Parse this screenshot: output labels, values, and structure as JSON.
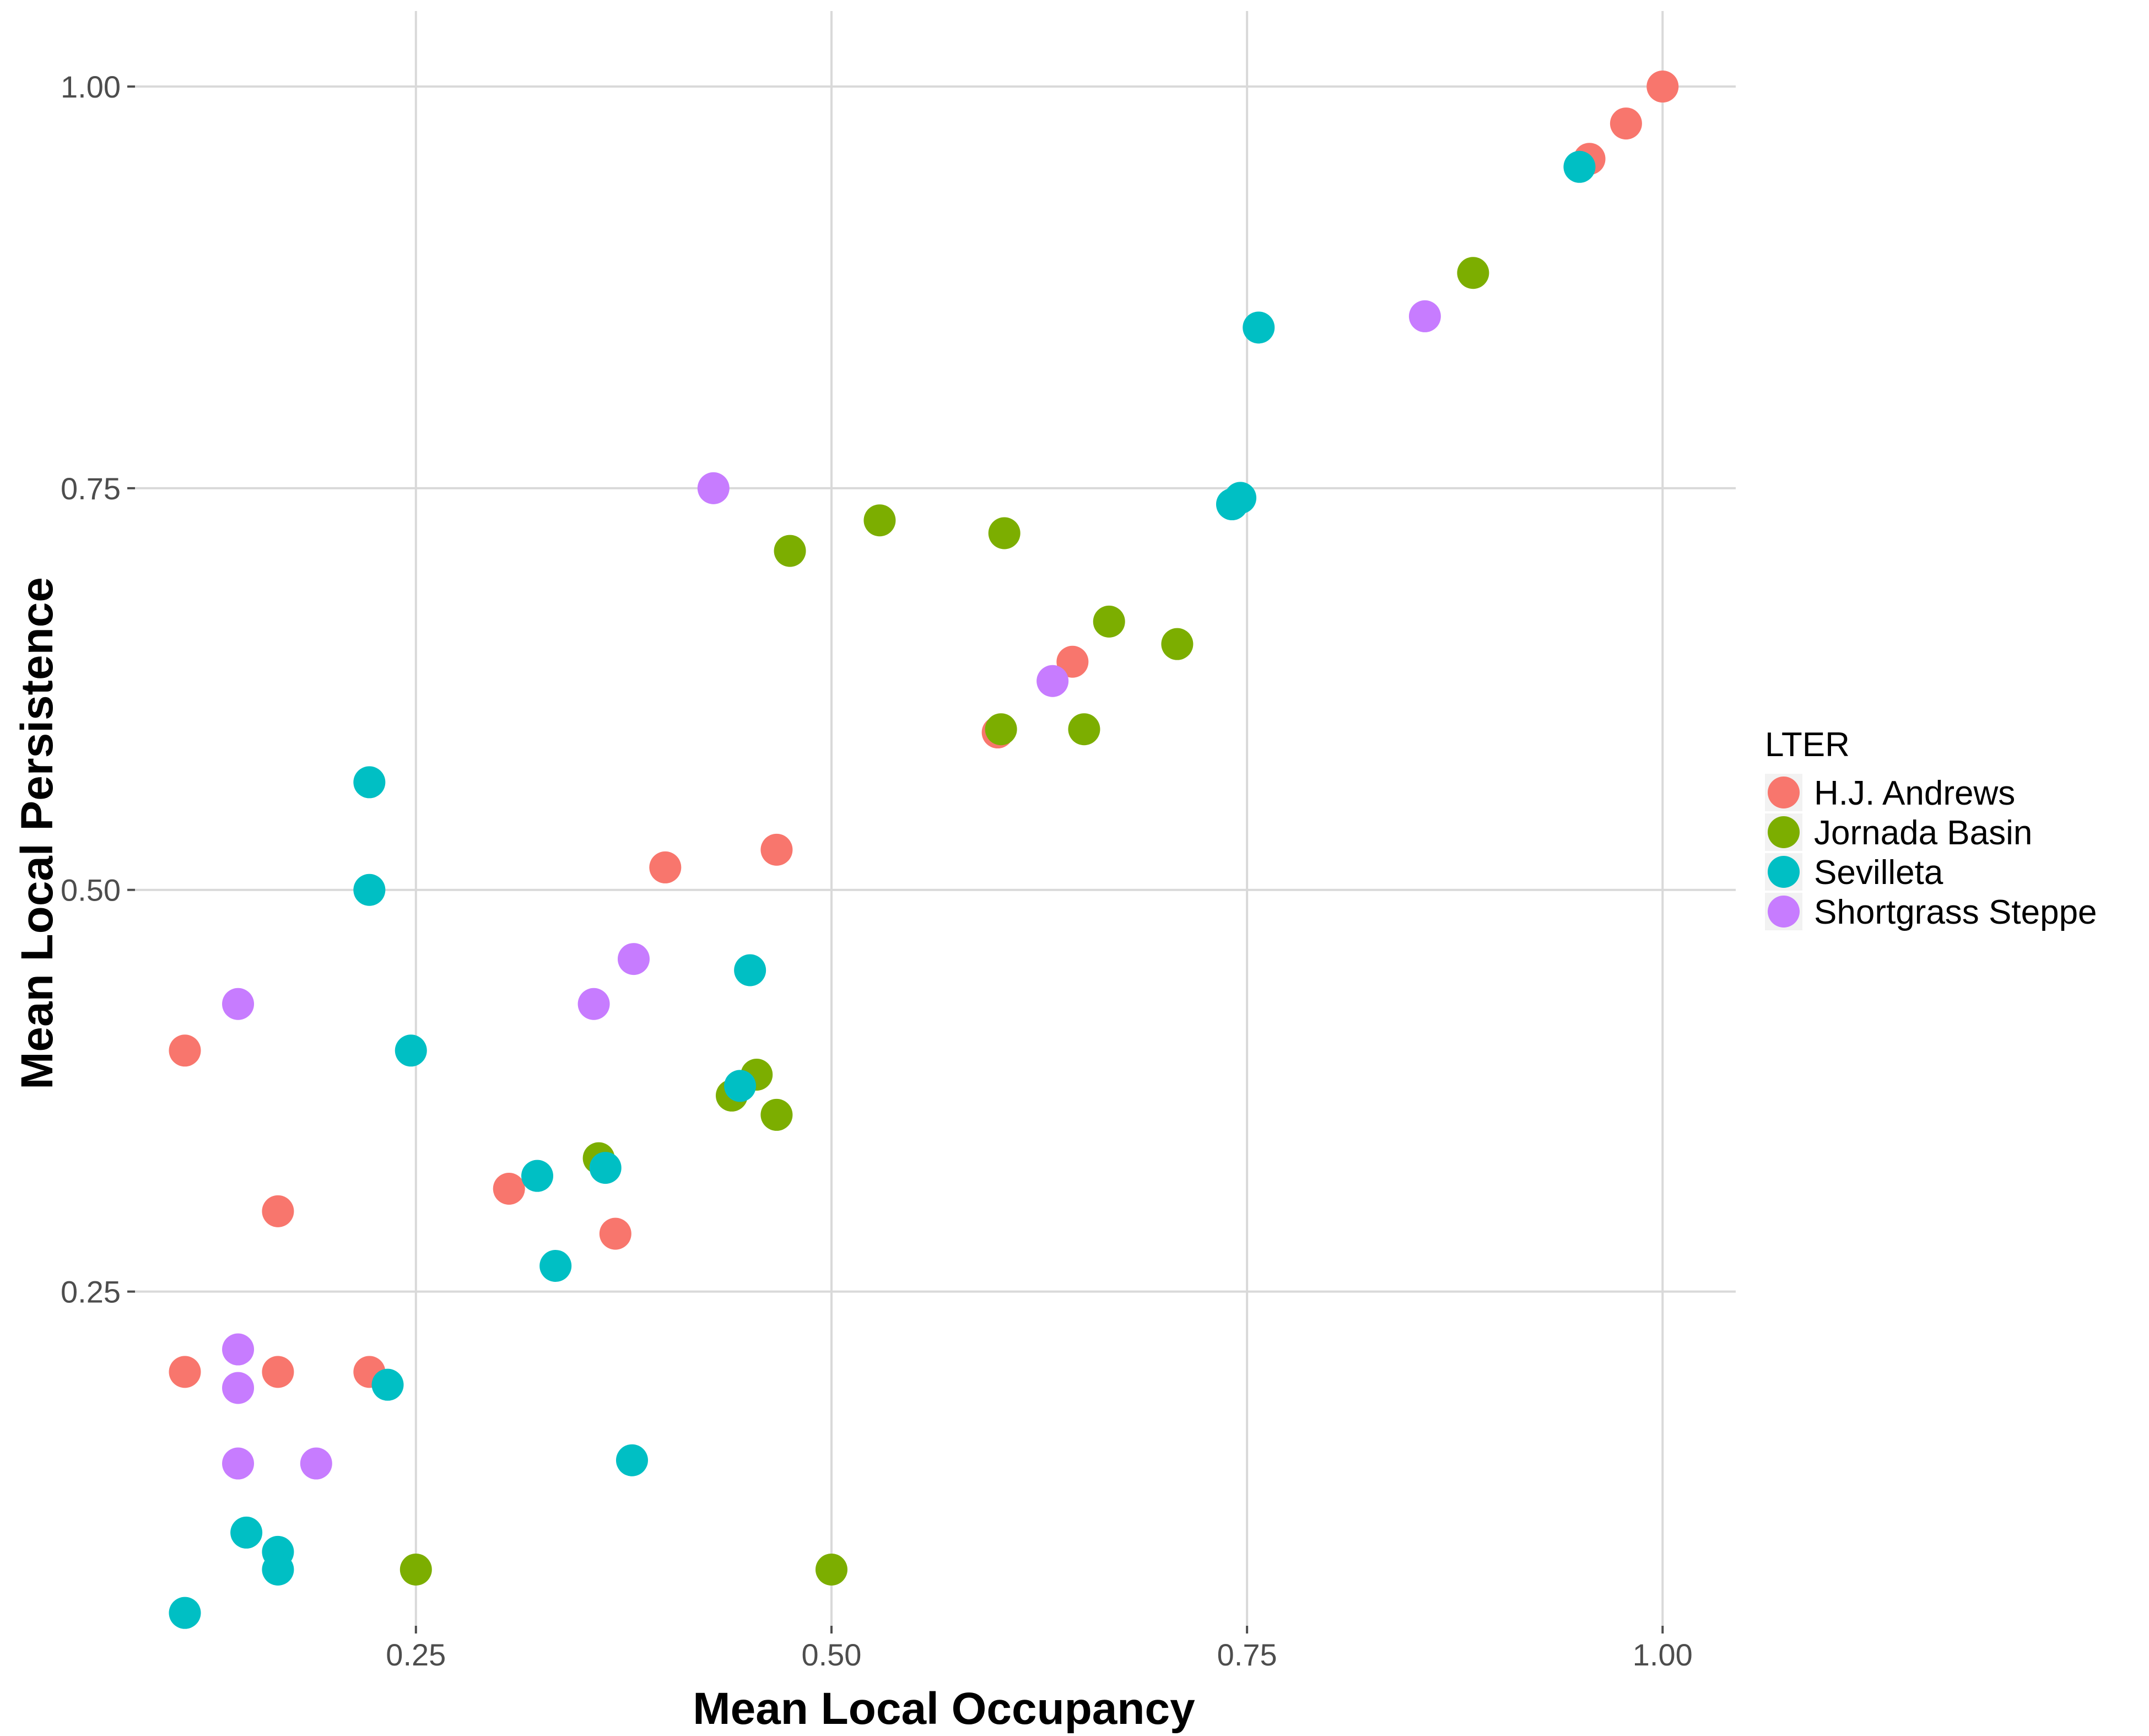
{
  "chart_data": {
    "type": "scatter",
    "title": "",
    "xlabel": "Mean Local Occupancy",
    "ylabel": "Mean Local Persistence",
    "xlim": [
      0.081,
      1.044
    ],
    "ylim": [
      0.042,
      1.047
    ],
    "x_ticks": [
      0.25,
      0.5,
      0.75,
      1.0
    ],
    "x_tick_labels": [
      "0.25",
      "0.50",
      "0.75",
      "1.00"
    ],
    "y_ticks": [
      0.25,
      0.5,
      0.75,
      1.0
    ],
    "y_tick_labels": [
      "0.25",
      "0.50",
      "0.75",
      "1.00"
    ],
    "grid": true,
    "legend": {
      "title": "LTER",
      "placement": "right"
    },
    "series": [
      {
        "name": "H.J. Andrews",
        "color": "#F8766D",
        "points": [
          {
            "x": 0.111,
            "y": 0.4
          },
          {
            "x": 0.111,
            "y": 0.2
          },
          {
            "x": 0.167,
            "y": 0.3
          },
          {
            "x": 0.167,
            "y": 0.2
          },
          {
            "x": 0.222,
            "y": 0.2
          },
          {
            "x": 0.306,
            "y": 0.314
          },
          {
            "x": 0.37,
            "y": 0.286
          },
          {
            "x": 0.4,
            "y": 0.514
          },
          {
            "x": 0.467,
            "y": 0.525
          },
          {
            "x": 0.6,
            "y": 0.598
          },
          {
            "x": 0.645,
            "y": 0.642
          },
          {
            "x": 0.956,
            "y": 0.955
          },
          {
            "x": 0.978,
            "y": 0.977
          },
          {
            "x": 1.0,
            "y": 1.0
          }
        ]
      },
      {
        "name": "Jornada Basin",
        "color": "#7CAE00",
        "points": [
          {
            "x": 0.25,
            "y": 0.077
          },
          {
            "x": 0.36,
            "y": 0.333
          },
          {
            "x": 0.44,
            "y": 0.372
          },
          {
            "x": 0.455,
            "y": 0.385
          },
          {
            "x": 0.467,
            "y": 0.36
          },
          {
            "x": 0.475,
            "y": 0.711
          },
          {
            "x": 0.5,
            "y": 0.077
          },
          {
            "x": 0.529,
            "y": 0.73
          },
          {
            "x": 0.602,
            "y": 0.6
          },
          {
            "x": 0.604,
            "y": 0.722
          },
          {
            "x": 0.652,
            "y": 0.6
          },
          {
            "x": 0.667,
            "y": 0.667
          },
          {
            "x": 0.708,
            "y": 0.653
          },
          {
            "x": 0.886,
            "y": 0.884
          }
        ]
      },
      {
        "name": "Sevilleta",
        "color": "#00BFC4",
        "points": [
          {
            "x": 0.111,
            "y": 0.05
          },
          {
            "x": 0.148,
            "y": 0.1
          },
          {
            "x": 0.167,
            "y": 0.088
          },
          {
            "x": 0.167,
            "y": 0.077
          },
          {
            "x": 0.222,
            "y": 0.567
          },
          {
            "x": 0.222,
            "y": 0.5
          },
          {
            "x": 0.233,
            "y": 0.192
          },
          {
            "x": 0.247,
            "y": 0.4
          },
          {
            "x": 0.323,
            "y": 0.322
          },
          {
            "x": 0.334,
            "y": 0.266
          },
          {
            "x": 0.364,
            "y": 0.327
          },
          {
            "x": 0.38,
            "y": 0.145
          },
          {
            "x": 0.445,
            "y": 0.378
          },
          {
            "x": 0.451,
            "y": 0.45
          },
          {
            "x": 0.741,
            "y": 0.74
          },
          {
            "x": 0.746,
            "y": 0.744
          },
          {
            "x": 0.757,
            "y": 0.85
          },
          {
            "x": 0.95,
            "y": 0.95
          }
        ]
      },
      {
        "name": "Shortgrass Steppe",
        "color": "#C77CFF",
        "points": [
          {
            "x": 0.143,
            "y": 0.429
          },
          {
            "x": 0.143,
            "y": 0.214
          },
          {
            "x": 0.143,
            "y": 0.19
          },
          {
            "x": 0.143,
            "y": 0.143
          },
          {
            "x": 0.19,
            "y": 0.143
          },
          {
            "x": 0.357,
            "y": 0.429
          },
          {
            "x": 0.381,
            "y": 0.457
          },
          {
            "x": 0.429,
            "y": 0.75
          },
          {
            "x": 0.633,
            "y": 0.63
          },
          {
            "x": 0.857,
            "y": 0.857
          }
        ]
      }
    ]
  }
}
